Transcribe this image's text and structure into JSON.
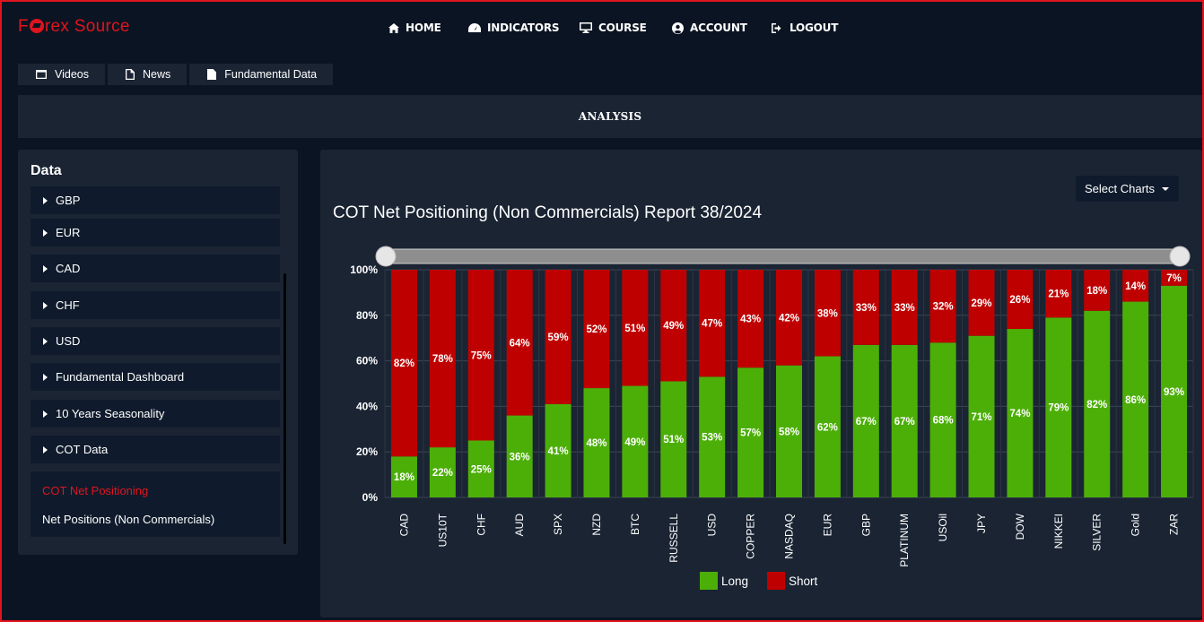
{
  "brand": {
    "logo_text_1": "F",
    "logo_text_2": "rex Source"
  },
  "nav": {
    "home": "HOME",
    "indicators": "INDICATORS",
    "course": "COURSE",
    "account": "ACCOUNT",
    "logout": "LOGOUT"
  },
  "subtabs": {
    "videos": "Videos",
    "news": "News",
    "fundamental": "Fundamental Data"
  },
  "section_title": "ANALYSIS",
  "sidebar": {
    "heading": "Data",
    "items": [
      {
        "label": "GBP"
      },
      {
        "label": "EUR"
      },
      {
        "label": "CAD"
      },
      {
        "label": "CHF"
      },
      {
        "label": "USD"
      },
      {
        "label": "Fundamental Dashboard"
      },
      {
        "label": "10 Years Seasonality"
      },
      {
        "label": "COT Data"
      }
    ],
    "sub_active": "COT Net Positioning",
    "sub_item": "Net Positions (Non Commercials)"
  },
  "select_charts": "Select Charts",
  "chart_data": {
    "type": "bar",
    "stacked": true,
    "title": "COT Net Positioning (Non Commercials) Report 38/2024",
    "categories": [
      "CAD",
      "US10T",
      "CHF",
      "AUD",
      "SPX",
      "NZD",
      "BTC",
      "RUSSELL",
      "USD",
      "COPPER",
      "NASDAQ",
      "EUR",
      "GBP",
      "PLATINUM",
      "USOil",
      "JPY",
      "DOW",
      "NIKKEI",
      "SILVER",
      "Gold",
      "ZAR"
    ],
    "series": [
      {
        "name": "Long",
        "color": "#4caf08",
        "values": [
          18,
          22,
          25,
          36,
          41,
          48,
          49,
          51,
          53,
          57,
          58,
          62,
          67,
          67,
          68,
          71,
          74,
          79,
          82,
          86,
          93
        ]
      },
      {
        "name": "Short",
        "color": "#bf0000",
        "values": [
          82,
          78,
          75,
          64,
          59,
          52,
          51,
          49,
          47,
          43,
          42,
          38,
          33,
          33,
          32,
          29,
          26,
          21,
          18,
          14,
          7
        ]
      }
    ],
    "yticks": [
      "0%",
      "20%",
      "40%",
      "60%",
      "80%",
      "100%"
    ],
    "ylim": [
      0,
      100
    ],
    "grid": true,
    "legend": "bottom"
  }
}
